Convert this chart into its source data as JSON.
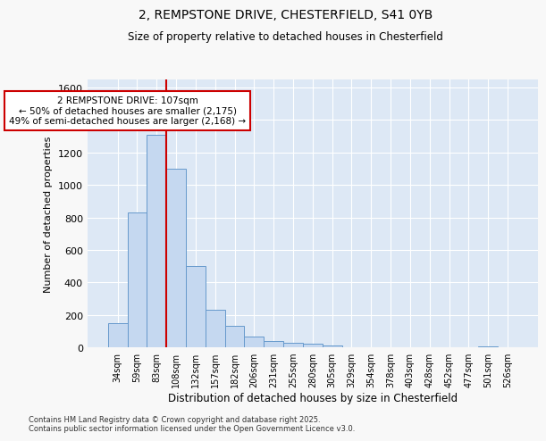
{
  "title_line1": "2, REMPSTONE DRIVE, CHESTERFIELD, S41 0YB",
  "title_line2": "Size of property relative to detached houses in Chesterfield",
  "xlabel": "Distribution of detached houses by size in Chesterfield",
  "ylabel": "Number of detached properties",
  "categories": [
    "34sqm",
    "59sqm",
    "83sqm",
    "108sqm",
    "132sqm",
    "157sqm",
    "182sqm",
    "206sqm",
    "231sqm",
    "255sqm",
    "280sqm",
    "305sqm",
    "329sqm",
    "354sqm",
    "378sqm",
    "403sqm",
    "428sqm",
    "452sqm",
    "477sqm",
    "501sqm",
    "526sqm"
  ],
  "values": [
    150,
    830,
    1310,
    1100,
    500,
    230,
    130,
    65,
    40,
    25,
    20,
    10,
    0,
    0,
    0,
    0,
    0,
    0,
    0,
    5,
    0
  ],
  "bar_color": "#c5d8f0",
  "bar_edge_color": "#6699cc",
  "background_color": "#dde8f5",
  "grid_color": "#ffffff",
  "vline_color": "#cc0000",
  "vline_position": 2.5,
  "ylim": [
    0,
    1650
  ],
  "yticks": [
    0,
    200,
    400,
    600,
    800,
    1000,
    1200,
    1400,
    1600
  ],
  "annotation_title": "2 REMPSTONE DRIVE: 107sqm",
  "annotation_line1": "← 50% of detached houses are smaller (2,175)",
  "annotation_line2": "49% of semi-detached houses are larger (2,168) →",
  "annotation_box_color": "#cc0000",
  "footnote_line1": "Contains HM Land Registry data © Crown copyright and database right 2025.",
  "footnote_line2": "Contains public sector information licensed under the Open Government Licence v3.0.",
  "fig_bg": "#f8f8f8"
}
